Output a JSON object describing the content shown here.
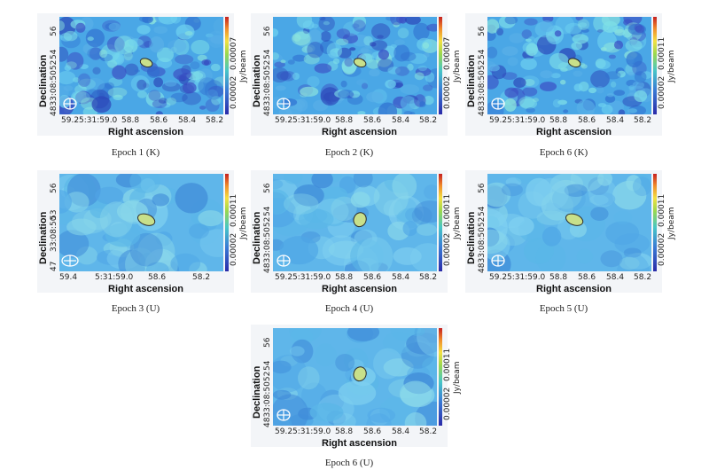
{
  "axis_labels": {
    "x": "Right ascension",
    "y": "Declination",
    "colorbar_unit": "Jy/beam"
  },
  "panels": [
    {
      "caption": "Epoch 1 (K)",
      "yticks": [
        "56",
        "54",
        "4833:08:5052"
      ],
      "xticks": [
        "59.2",
        "5:31:59.0",
        "58.8",
        "58.6",
        "58.4",
        "58.2"
      ],
      "cbticks": [
        "0.00002",
        "0.00007"
      ],
      "seed": 11,
      "ellipse_size": "small"
    },
    {
      "caption": "Epoch 2 (K)",
      "yticks": [
        "56",
        "54",
        "4833:08:5052"
      ],
      "xticks": [
        "59.2",
        "5:31:59.0",
        "58.8",
        "58.6",
        "58.4",
        "58.2"
      ],
      "cbticks": [
        "0.00002",
        "0.00007"
      ],
      "seed": 23,
      "ellipse_size": "small"
    },
    {
      "caption": "Epoch 6 (K)",
      "yticks": [
        "56",
        "54",
        "4833:08:5052"
      ],
      "xticks": [
        "59.2",
        "5:31:59.0",
        "58.8",
        "58.6",
        "58.4",
        "58.2"
      ],
      "cbticks": [
        "0.00002",
        "0.00011"
      ],
      "seed": 37,
      "ellipse_size": "small"
    },
    {
      "caption": "Epoch 3 (U)",
      "yticks": [
        "56",
        "53",
        "33:08:50",
        "47"
      ],
      "xticks": [
        "59.4",
        "5:31:59.0",
        "58.6",
        "58.2"
      ],
      "cbticks": [
        "0.00002",
        "0.00011"
      ],
      "seed": 41,
      "ellipse_size": "large"
    },
    {
      "caption": "Epoch 4 (U)",
      "yticks": [
        "56",
        "54",
        "4833:08:5052"
      ],
      "xticks": [
        "59.2",
        "5:31:59.0",
        "58.8",
        "58.6",
        "58.4",
        "58.2"
      ],
      "cbticks": [
        "0.00002",
        "0.00011"
      ],
      "seed": 53,
      "ellipse_size": "medium"
    },
    {
      "caption": "Epoch 5 (U)",
      "yticks": [
        "56",
        "54",
        "4833:08:5052"
      ],
      "xticks": [
        "59.2",
        "5:31:59.0",
        "58.8",
        "58.6",
        "58.4",
        "58.2"
      ],
      "cbticks": [
        "0.00002",
        "0.00011"
      ],
      "seed": 67,
      "ellipse_size": "large"
    },
    {
      "caption": "Epoch 6 (U)",
      "yticks": [
        "56",
        "54",
        "4833:08:5052"
      ],
      "xticks": [
        "59.2",
        "5:31:59.0",
        "58.8",
        "58.6",
        "58.4",
        "58.2"
      ],
      "cbticks": [
        "0.00002",
        "0.00011"
      ],
      "seed": 79,
      "ellipse_size": "medium"
    }
  ]
}
